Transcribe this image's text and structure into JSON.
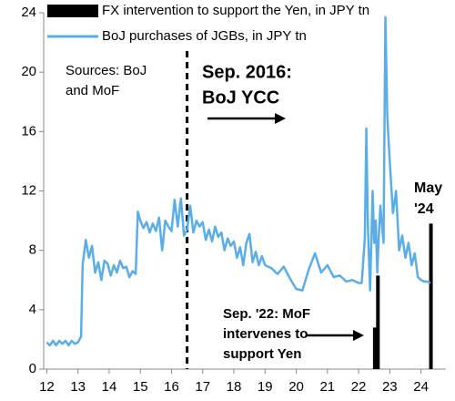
{
  "chart_data": {
    "type": "line",
    "series": [
      {
        "name": "FX intervention to support the Yen, in JPY tn",
        "color": "#000000",
        "type": "bar",
        "x": [
          22.52,
          22.62,
          24.32
        ],
        "values": [
          2.8,
          6.3,
          9.8
        ]
      },
      {
        "name": "BoJ purchases of JGBs, in JPY tn",
        "color": "#5aaee8",
        "type": "line",
        "x": [
          12.0,
          12.1,
          12.2,
          12.3,
          12.4,
          12.5,
          12.6,
          12.7,
          12.8,
          12.9,
          13.0,
          13.1,
          13.15,
          13.25,
          13.35,
          13.45,
          13.55,
          13.65,
          13.75,
          13.85,
          13.95,
          14.05,
          14.15,
          14.25,
          14.35,
          14.45,
          14.55,
          14.65,
          14.75,
          14.85,
          14.92,
          15.0,
          15.1,
          15.2,
          15.3,
          15.4,
          15.5,
          15.6,
          15.7,
          15.8,
          15.9,
          16.0,
          16.1,
          16.2,
          16.3,
          16.4,
          16.5,
          16.6,
          16.7,
          16.8,
          16.9,
          17.0,
          17.1,
          17.2,
          17.3,
          17.4,
          17.5,
          17.6,
          17.7,
          17.8,
          17.9,
          18.0,
          18.1,
          18.2,
          18.3,
          18.4,
          18.5,
          18.6,
          18.7,
          18.8,
          18.9,
          19.0,
          19.2,
          19.4,
          19.6,
          19.8,
          20.0,
          20.2,
          20.4,
          20.6,
          20.8,
          21.0,
          21.2,
          21.4,
          21.6,
          21.8,
          22.0,
          22.1,
          22.2,
          22.25,
          22.3,
          22.37,
          22.45,
          22.5,
          22.55,
          22.6,
          22.65,
          22.7,
          22.8,
          22.86,
          22.92,
          23.0,
          23.1,
          23.2,
          23.3,
          23.4,
          23.5,
          23.6,
          23.7,
          23.8,
          23.9,
          24.0,
          24.1,
          24.2,
          24.3
        ],
        "values": [
          1.8,
          1.6,
          1.9,
          1.6,
          1.9,
          1.7,
          1.9,
          1.6,
          1.9,
          1.7,
          1.8,
          2.2,
          7.0,
          8.7,
          7.5,
          8.3,
          6.5,
          7.2,
          6.0,
          7.3,
          7.1,
          6.3,
          7.0,
          6.5,
          7.3,
          6.8,
          6.9,
          6.2,
          6.6,
          6.4,
          10.6,
          10.0,
          9.5,
          9.9,
          9.2,
          9.8,
          9.3,
          10.2,
          8.0,
          10.0,
          9.6,
          9.3,
          11.4,
          9.6,
          11.5,
          9.0,
          9.4,
          11.0,
          9.2,
          10.0,
          9.6,
          9.9,
          8.7,
          9.4,
          8.6,
          9.6,
          8.9,
          9.2,
          8.0,
          8.8,
          8.3,
          8.6,
          7.5,
          8.2,
          7.0,
          8.5,
          9.1,
          7.2,
          7.9,
          7.0,
          7.6,
          7.0,
          6.8,
          6.4,
          6.9,
          6.1,
          5.4,
          5.3,
          6.7,
          7.8,
          6.5,
          7.0,
          6.2,
          6.3,
          5.9,
          6.0,
          5.8,
          5.8,
          8.8,
          16.2,
          9.5,
          5.3,
          12.0,
          8.5,
          10.0,
          6.5,
          9.0,
          11.0,
          8.5,
          23.7,
          17.0,
          14.0,
          10.5,
          12.0,
          8.0,
          9.0,
          7.5,
          8.5,
          7.0,
          7.8,
          6.2,
          6.0,
          5.9,
          5.9,
          5.8
        ]
      }
    ],
    "event_line_x": 16.5,
    "annotations": [
      {
        "lines": [
          "Sources: BoJ",
          "and MoF"
        ]
      },
      {
        "lines": [
          "Sep. 2016:",
          "BoJ YCC"
        ]
      },
      {
        "lines": [
          "Sep. '22: MoF",
          "intervenes to",
          "support Yen"
        ]
      },
      {
        "lines": [
          "May",
          "'24"
        ]
      }
    ],
    "xlim": [
      11.9,
      24.8
    ],
    "xticks": [
      12,
      13,
      14,
      15,
      16,
      17,
      18,
      19,
      20,
      21,
      22,
      23,
      24
    ],
    "ylim": [
      0,
      24
    ],
    "yticks": [
      0,
      4,
      8,
      12,
      16,
      20,
      24
    ]
  }
}
